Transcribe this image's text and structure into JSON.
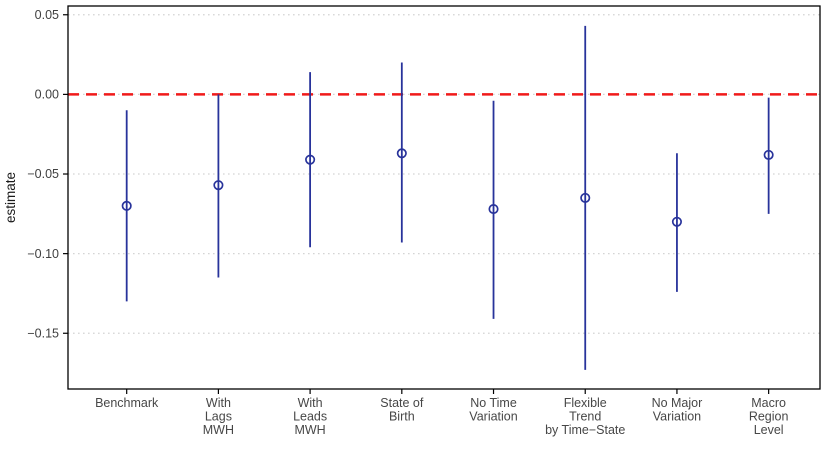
{
  "figure": {
    "kind": "coefficient-plot",
    "y_axis_title": "estimate"
  },
  "chart_data": {
    "type": "scatter",
    "subtype": "pointrange-with-error-bars",
    "title": "",
    "xlabel": "",
    "ylabel": "estimate",
    "categories": [
      "Benchmark",
      "With Lags MWH",
      "With Leads MWH",
      "State of Birth",
      "No Time Variation",
      "Flexible Trend by Time−State",
      "No Major Variation",
      "Macro Region Level"
    ],
    "category_label_lines": [
      [
        "Benchmark"
      ],
      [
        "With",
        "Lags",
        "MWH"
      ],
      [
        "With",
        "Leads",
        "MWH"
      ],
      [
        "State of",
        "Birth"
      ],
      [
        "No Time",
        "Variation"
      ],
      [
        "Flexible",
        "Trend",
        "by Time−State"
      ],
      [
        "No Major",
        "Variation"
      ],
      [
        "Macro",
        "Region",
        "Level"
      ]
    ],
    "series": [
      {
        "name": "estimate",
        "values": [
          -0.07,
          -0.057,
          -0.041,
          -0.037,
          -0.072,
          -0.065,
          -0.08,
          -0.038
        ]
      },
      {
        "name": "ci_lower",
        "values": [
          -0.13,
          -0.115,
          -0.096,
          -0.093,
          -0.141,
          -0.173,
          -0.124,
          -0.075
        ]
      },
      {
        "name": "ci_upper",
        "values": [
          -0.01,
          0.0,
          0.014,
          0.02,
          -0.004,
          0.043,
          -0.037,
          -0.002
        ]
      }
    ],
    "yticks": [
      0.05,
      0.0,
      -0.05,
      -0.1,
      -0.15
    ],
    "ytick_labels": [
      "0.05",
      "0.00",
      "−0.05",
      "−0.10",
      "−0.15"
    ],
    "ylim": [
      -0.185,
      0.0555
    ],
    "reference_line": {
      "value": 0,
      "style": "dashed",
      "color": "#F01A1A"
    },
    "grid": "horizontal-dotted-major-only",
    "legend": "none",
    "colors": {
      "point": "#28339B",
      "error_bar": "#28339B",
      "gridline": "#D4D4D4",
      "axis_text": "#404040",
      "category_text": "#474747",
      "axis_title": "#1A1A1A",
      "panel_border": "#000000",
      "background": "#FFFFFF"
    }
  }
}
